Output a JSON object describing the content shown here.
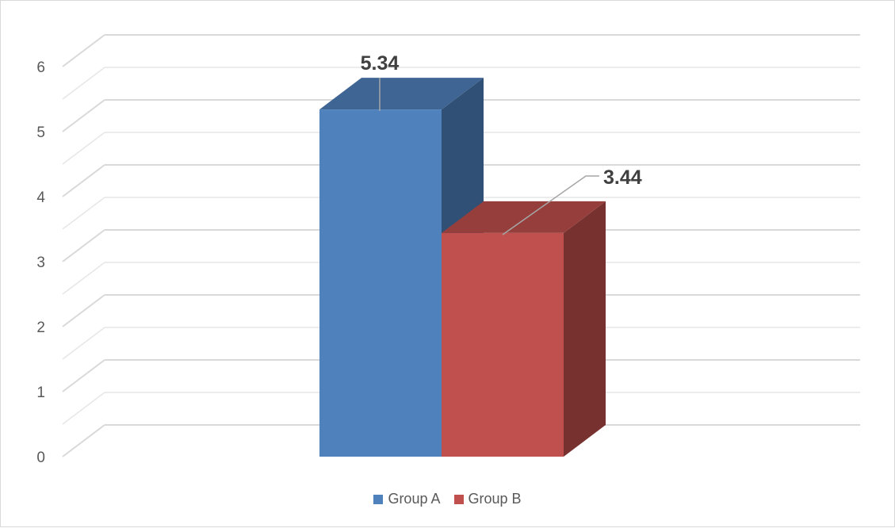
{
  "chart_data": {
    "type": "bar",
    "style": "3d-clustered-column",
    "categories": [
      ""
    ],
    "series": [
      {
        "name": "Group A",
        "values": [
          5.34
        ],
        "color": "#4F81BD"
      },
      {
        "name": "Group B",
        "values": [
          3.44
        ],
        "color": "#C0504D"
      }
    ],
    "data_labels": [
      "5.34",
      "3.44"
    ],
    "ylim": [
      0,
      6
    ],
    "yticks": [
      "0",
      "1",
      "2",
      "3",
      "4",
      "5",
      "6"
    ],
    "title": "",
    "xlabel": "",
    "ylabel": "",
    "grid": "major and minor horizontal",
    "legend_position": "bottom"
  }
}
